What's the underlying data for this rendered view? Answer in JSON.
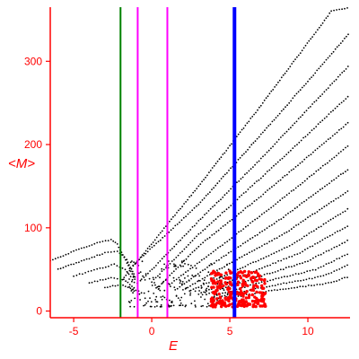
{
  "chart_data": {
    "type": "scatter",
    "xlabel": "E",
    "ylabel": "<M>",
    "xlim": [
      -6.5,
      12.7
    ],
    "ylim": [
      -8,
      365
    ],
    "x_ticks": [
      -5,
      0,
      5,
      10
    ],
    "y_ticks": [
      0,
      100,
      200,
      300
    ],
    "grid": false,
    "colors": {
      "axis": "#ff0000",
      "tick_label": "#ff0000",
      "points": "#000000",
      "highlight_points": "#ff0000",
      "green_line": "#008000",
      "magenta_line": "#ff00ff",
      "blue_line": "#0000ff"
    },
    "vertical_lines": [
      {
        "x": -2.0,
        "color": "#008000"
      },
      {
        "x": -0.9,
        "color": "#ff00ff"
      },
      {
        "x": 1.0,
        "color": "#ff00ff"
      },
      {
        "x": 5.3,
        "color": "#0000ff",
        "thick": true
      }
    ],
    "branches": [
      {
        "points": [
          [
            -2.0,
            35
          ],
          [
            3.0,
            150
          ],
          [
            7.0,
            247
          ],
          [
            11.5,
            360
          ],
          [
            12.7,
            365
          ]
        ]
      },
      {
        "points": [
          [
            -1.2,
            55
          ],
          [
            3.0,
            128
          ],
          [
            7.0,
            212
          ],
          [
            10.0,
            276
          ],
          [
            12.7,
            335
          ]
        ]
      },
      {
        "points": [
          [
            -0.5,
            40
          ],
          [
            3.0,
            108
          ],
          [
            7.0,
            183
          ],
          [
            12.7,
            296
          ]
        ]
      },
      {
        "points": [
          [
            0.0,
            35
          ],
          [
            3.0,
            92
          ],
          [
            7.0,
            160
          ],
          [
            12.7,
            260
          ]
        ]
      },
      {
        "points": [
          [
            0.5,
            30
          ],
          [
            3.0,
            78
          ],
          [
            7.0,
            138
          ],
          [
            12.7,
            228
          ]
        ]
      },
      {
        "points": [
          [
            1.0,
            30
          ],
          [
            3.5,
            65
          ],
          [
            7.5,
            122
          ],
          [
            12.7,
            200
          ]
        ]
      },
      {
        "points": [
          [
            1.5,
            25
          ],
          [
            4.0,
            58
          ],
          [
            8.0,
            107
          ],
          [
            12.7,
            172
          ]
        ]
      },
      {
        "points": [
          [
            2.0,
            25
          ],
          [
            4.5,
            52
          ],
          [
            8.5,
            93
          ],
          [
            12.7,
            146
          ]
        ]
      },
      {
        "points": [
          [
            2.5,
            25
          ],
          [
            5.0,
            45
          ],
          [
            9.0,
            80
          ],
          [
            12.7,
            124
          ]
        ]
      },
      {
        "points": [
          [
            3.0,
            20
          ],
          [
            5.5,
            40
          ],
          [
            9.5,
            70
          ],
          [
            12.7,
            104
          ]
        ]
      },
      {
        "points": [
          [
            3.5,
            20
          ],
          [
            6.0,
            36
          ],
          [
            10.0,
            60
          ],
          [
            12.7,
            86
          ]
        ]
      },
      {
        "points": [
          [
            4.0,
            18
          ],
          [
            6.5,
            32
          ],
          [
            10.5,
            50
          ],
          [
            12.7,
            70
          ]
        ]
      },
      {
        "points": [
          [
            4.5,
            18
          ],
          [
            7.0,
            28
          ],
          [
            11.0,
            42
          ],
          [
            12.7,
            56
          ]
        ]
      },
      {
        "points": [
          [
            5.0,
            16
          ],
          [
            7.5,
            24
          ],
          [
            11.5,
            34
          ],
          [
            12.7,
            42
          ]
        ]
      },
      {
        "points": [
          [
            -6.5,
            60
          ],
          [
            -5.0,
            72
          ],
          [
            -3.5,
            82
          ],
          [
            -2.6,
            86
          ],
          [
            -2.2,
            80
          ],
          [
            -1.5,
            55
          ],
          [
            -1.0,
            35
          ]
        ]
      },
      {
        "points": [
          [
            -6.0,
            50
          ],
          [
            -4.5,
            60
          ],
          [
            -3.0,
            70
          ],
          [
            -2.2,
            72
          ],
          [
            -1.6,
            62
          ],
          [
            -1.0,
            38
          ]
        ]
      },
      {
        "points": [
          [
            -5.0,
            42
          ],
          [
            -3.5,
            50
          ],
          [
            -2.4,
            56
          ],
          [
            -1.7,
            50
          ],
          [
            -1.0,
            32
          ]
        ]
      },
      {
        "points": [
          [
            -4.0,
            34
          ],
          [
            -2.6,
            40
          ],
          [
            -1.8,
            38
          ],
          [
            -1.0,
            26
          ]
        ]
      },
      {
        "points": [
          [
            -3.0,
            28
          ],
          [
            -2.0,
            32
          ],
          [
            -1.2,
            26
          ],
          [
            -0.3,
            20
          ]
        ]
      }
    ],
    "noise_cluster": {
      "x_range": [
        -1.5,
        5.0
      ],
      "y_range": [
        5,
        60
      ],
      "count": 200
    },
    "red_cluster": {
      "x_range": [
        3.8,
        7.3
      ],
      "y_range": [
        5,
        48
      ],
      "count": 260
    }
  }
}
